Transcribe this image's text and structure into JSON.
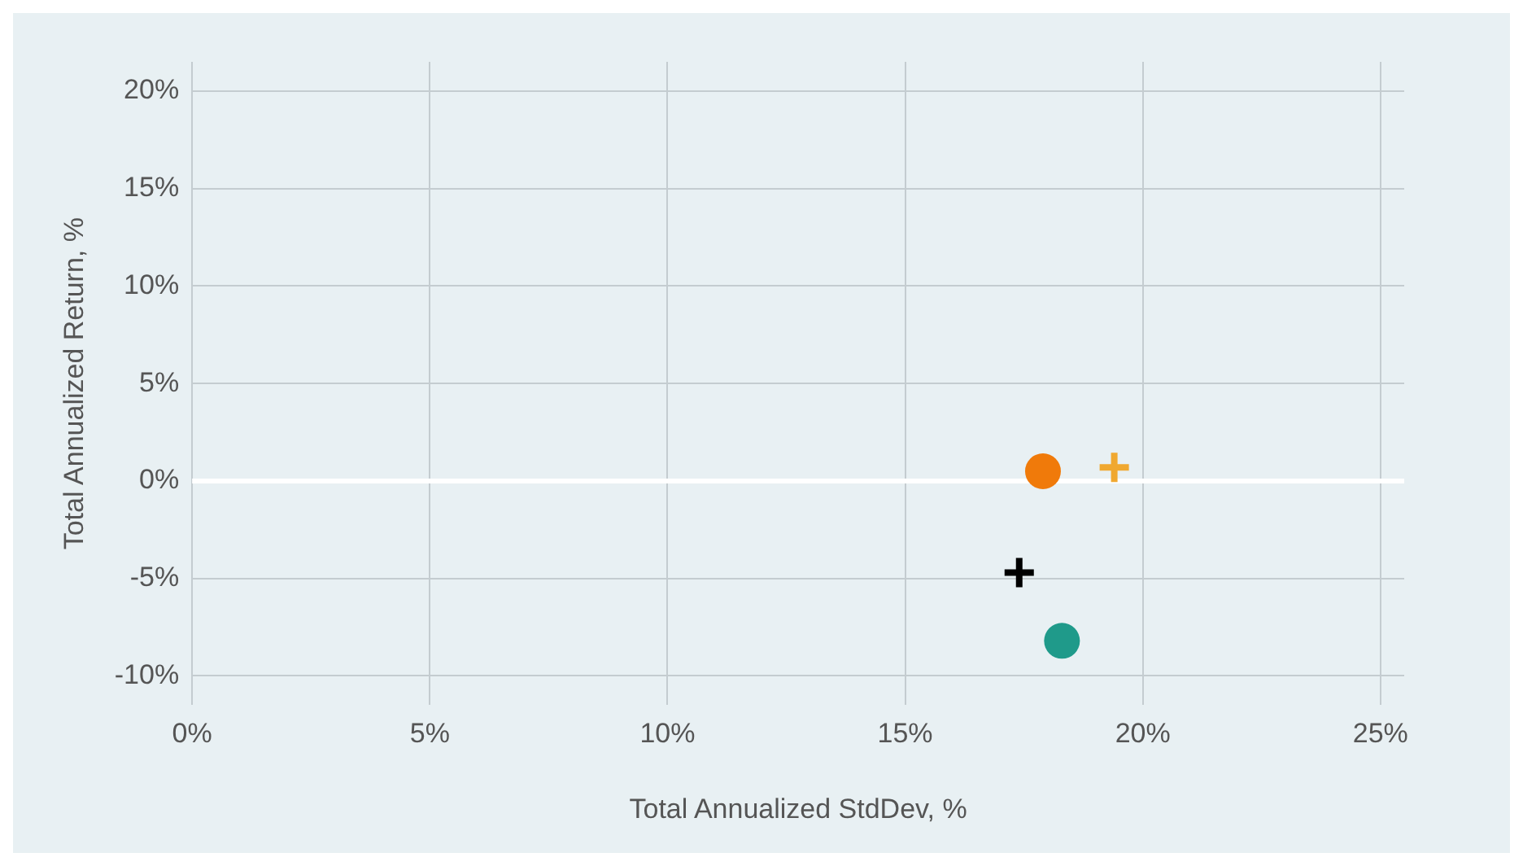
{
  "chart_data": {
    "type": "scatter",
    "xlabel": "Total Annualized StdDev, %",
    "ylabel": "Total Annualized Return, %",
    "series": [
      {
        "color": "#f07a0a",
        "marker": "circle",
        "x": [
          17.9
        ],
        "values": [
          0.5
        ]
      },
      {
        "color": "#f0a830",
        "marker": "cross",
        "x": [
          19.4
        ],
        "values": [
          0.7
        ]
      },
      {
        "color": "#000000",
        "marker": "cross",
        "x": [
          17.4
        ],
        "values": [
          -4.7
        ]
      },
      {
        "color": "#1f9a8a",
        "marker": "circle",
        "x": [
          18.3
        ],
        "values": [
          -8.2
        ]
      }
    ],
    "xlim": [
      0,
      25.5
    ],
    "xticks": [
      {
        "value": 0,
        "label": "0%"
      },
      {
        "value": 5,
        "label": "5%"
      },
      {
        "value": 10,
        "label": "10%"
      },
      {
        "value": 15,
        "label": "15%"
      },
      {
        "value": 20,
        "label": "20%"
      },
      {
        "value": 25,
        "label": "25%"
      }
    ],
    "ylim": [
      -11.5,
      21.5
    ],
    "yticks": [
      {
        "value": -10,
        "label": "-10%"
      },
      {
        "value": -5,
        "label": "-5%"
      },
      {
        "value": 0,
        "label": "0%"
      },
      {
        "value": 5,
        "label": "5%"
      },
      {
        "value": 10,
        "label": "10%"
      },
      {
        "value": 15,
        "label": "15%"
      },
      {
        "value": 20,
        "label": "20%"
      }
    ],
    "ref_lines": [
      {
        "axis": "y",
        "value": 0,
        "color": "#ffffff"
      }
    ],
    "grid": true,
    "legend": false
  }
}
